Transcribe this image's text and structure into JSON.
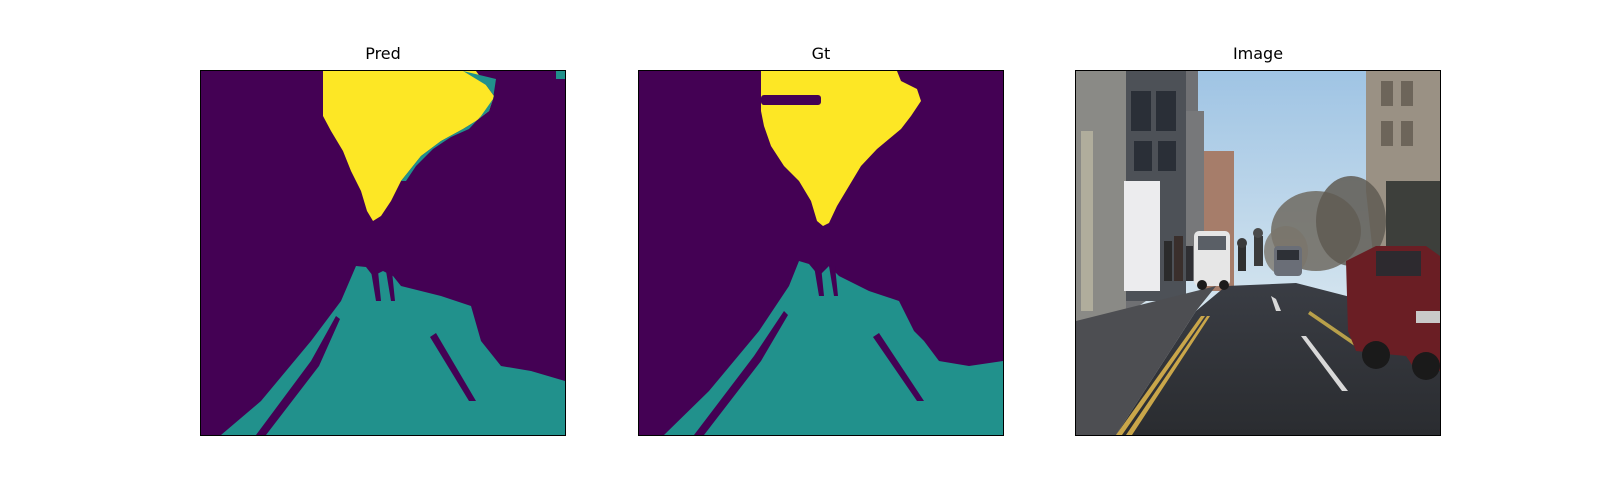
{
  "panels": [
    {
      "title": "Pred",
      "kind": "segmentation-mask"
    },
    {
      "title": "Gt",
      "kind": "segmentation-mask"
    },
    {
      "title": "Image",
      "kind": "street-photo"
    }
  ],
  "colors": {
    "background_class": "#440154",
    "road_class": "#21918c",
    "sky_class": "#fde725"
  }
}
